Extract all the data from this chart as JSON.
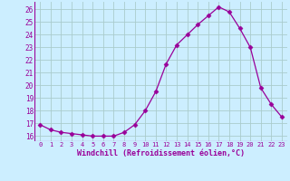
{
  "x": [
    0,
    1,
    2,
    3,
    4,
    5,
    6,
    7,
    8,
    9,
    10,
    11,
    12,
    13,
    14,
    15,
    16,
    17,
    18,
    19,
    20,
    21,
    22,
    23
  ],
  "y": [
    16.9,
    16.5,
    16.3,
    16.2,
    16.1,
    16.0,
    16.0,
    16.0,
    16.3,
    16.9,
    18.0,
    19.5,
    21.7,
    23.2,
    24.0,
    24.8,
    25.5,
    26.2,
    25.8,
    24.5,
    23.0,
    19.8,
    18.5,
    17.5
  ],
  "line_color": "#990099",
  "marker": "D",
  "marker_size": 2.5,
  "bg_color": "#cceeff",
  "grid_color": "#aacccc",
  "xlabel": "Windchill (Refroidissement éolien,°C)",
  "xlabel_color": "#990099",
  "tick_color": "#990099",
  "yticks": [
    16,
    17,
    18,
    19,
    20,
    21,
    22,
    23,
    24,
    25,
    26
  ],
  "xtick_labels": [
    "0",
    "1",
    "2",
    "3",
    "4",
    "5",
    "6",
    "7",
    "8",
    "9",
    "10",
    "11",
    "12",
    "13",
    "14",
    "15",
    "16",
    "17",
    "18",
    "19",
    "20",
    "21",
    "22",
    "23"
  ],
  "xlim": [
    -0.5,
    23.5
  ],
  "ylim": [
    15.6,
    26.6
  ]
}
